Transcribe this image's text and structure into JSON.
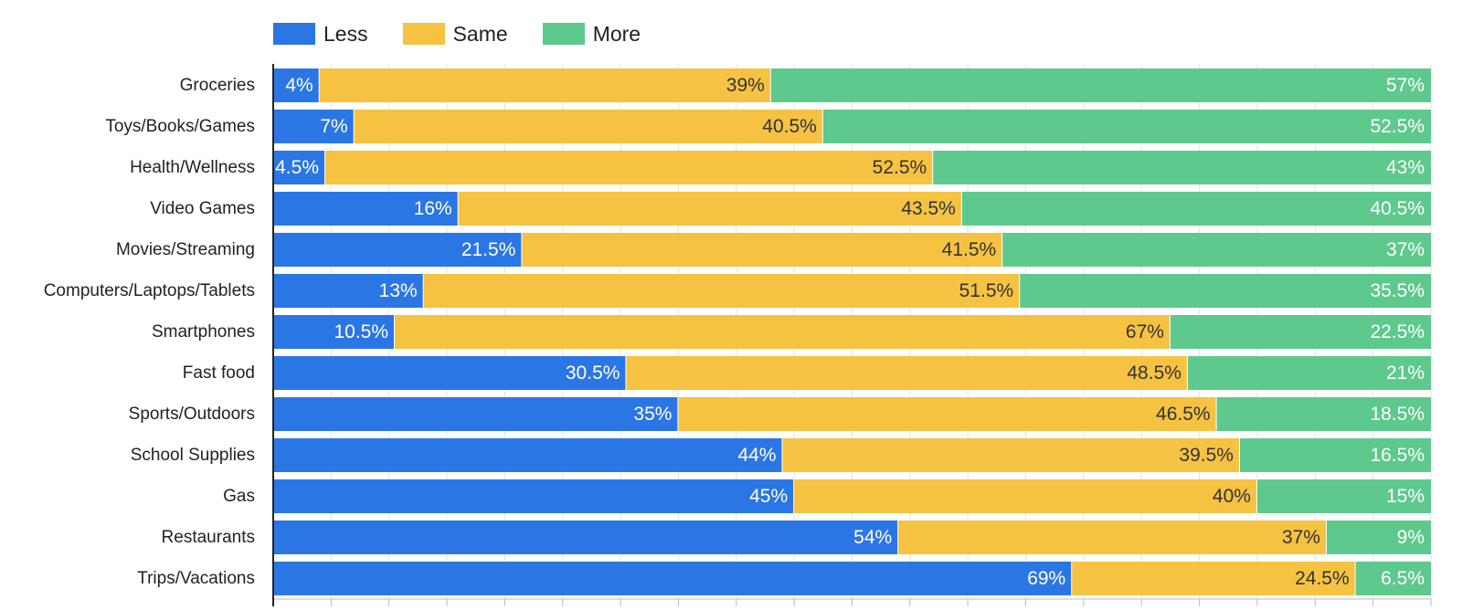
{
  "chart_data": {
    "type": "bar",
    "orientation": "horizontal",
    "stacked": true,
    "legend_position": "top-left",
    "grid": true,
    "xlim": [
      0,
      100
    ],
    "categories": [
      "Groceries",
      "Toys/Books/Games",
      "Health/Wellness",
      "Video Games",
      "Movies/Streaming",
      "Computers/Laptops/Tablets",
      "Smartphones",
      "Fast food",
      "Sports/Outdoors",
      "School Supplies",
      "Gas",
      "Restaurants",
      "Trips/Vacations"
    ],
    "series": [
      {
        "name": "Less",
        "color": "#2b76e5",
        "values": [
          4,
          7,
          4.5,
          16,
          21.5,
          13,
          10.5,
          30.5,
          35,
          44,
          45,
          54,
          69
        ]
      },
      {
        "name": "Same",
        "color": "#f5c242",
        "values": [
          39,
          40.5,
          52.5,
          43.5,
          41.5,
          51.5,
          67,
          48.5,
          46.5,
          39.5,
          40,
          37,
          24.5
        ]
      },
      {
        "name": "More",
        "color": "#5ec98c",
        "values": [
          57,
          52.5,
          43,
          40.5,
          37,
          35.5,
          22.5,
          21,
          18.5,
          16.5,
          15,
          9,
          6.5
        ]
      }
    ],
    "data_labels": [
      [
        "4%",
        "7%",
        "4.5%",
        "16%",
        "21.5%",
        "13%",
        "10.5%",
        "30.5%",
        "35%",
        "44%",
        "45%",
        "54%",
        "69%"
      ],
      [
        "39%",
        "40.5%",
        "52.5%",
        "43.5%",
        "41.5%",
        "51.5%",
        "67%",
        "48.5%",
        "46.5%",
        "39.5%",
        "40%",
        "37%",
        "24.5%"
      ],
      [
        "57%",
        "52.5%",
        "43%",
        "40.5%",
        "37%",
        "35.5%",
        "22.5%",
        "21%",
        "18.5%",
        "16.5%",
        "15%",
        "9%",
        "6.5%"
      ]
    ],
    "label_colors": [
      "#ffffff",
      "#333333",
      "#ffffff"
    ]
  }
}
